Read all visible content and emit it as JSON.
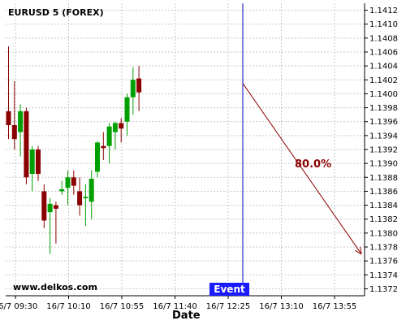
{
  "chart_data": {
    "type": "candlestick",
    "title": "EURUSD 5 (FOREX)",
    "xlabel": "Date",
    "ylabel": "",
    "ylim": [
      1.1371,
      1.1413
    ],
    "y_ticks": [
      "1.1412",
      "1.1410",
      "1.1408",
      "1.1406",
      "1.1404",
      "1.1402",
      "1.1400",
      "1.1398",
      "1.1396",
      "1.1394",
      "1.1392",
      "1.1390",
      "1.1388",
      "1.1386",
      "1.1384",
      "1.1382",
      "1.1380",
      "1.1378",
      "1.1376",
      "1.1374",
      "1.1372"
    ],
    "x_ticks": [
      "16/7 09:30",
      "16/7 10:10",
      "16/7 10:55",
      "16/7 11:40",
      "16/7 12:25",
      "16/7 13:10",
      "16/7 13:55"
    ],
    "grid": true,
    "candles": [
      {
        "open": 1.13975,
        "high": 1.14068,
        "low": 1.13935,
        "close": 1.13955
      },
      {
        "open": 1.13955,
        "high": 1.14018,
        "low": 1.1392,
        "close": 1.13935
      },
      {
        "open": 1.13945,
        "high": 1.13985,
        "low": 1.1391,
        "close": 1.13975
      },
      {
        "open": 1.13975,
        "high": 1.1398,
        "low": 1.1387,
        "close": 1.1388
      },
      {
        "open": 1.13885,
        "high": 1.13925,
        "low": 1.1386,
        "close": 1.1392
      },
      {
        "open": 1.1392,
        "high": 1.13925,
        "low": 1.13875,
        "close": 1.13885
      },
      {
        "open": 1.1386,
        "high": 1.1387,
        "low": 1.13807,
        "close": 1.13818
      },
      {
        "open": 1.1383,
        "high": 1.1385,
        "low": 1.1377,
        "close": 1.13842
      },
      {
        "open": 1.1384,
        "high": 1.13845,
        "low": 1.13785,
        "close": 1.13835
      },
      {
        "open": 1.1386,
        "high": 1.13875,
        "low": 1.13855,
        "close": 1.13863
      },
      {
        "open": 1.13865,
        "high": 1.1389,
        "low": 1.1384,
        "close": 1.1388
      },
      {
        "open": 1.1388,
        "high": 1.1389,
        "low": 1.13855,
        "close": 1.13868
      },
      {
        "open": 1.1386,
        "high": 1.1388,
        "low": 1.13825,
        "close": 1.1384
      },
      {
        "open": 1.1385,
        "high": 1.1387,
        "low": 1.1381,
        "close": 1.13852
      },
      {
        "open": 1.13845,
        "high": 1.1389,
        "low": 1.1382,
        "close": 1.13878
      },
      {
        "open": 1.13888,
        "high": 1.13932,
        "low": 1.1388,
        "close": 1.1393
      },
      {
        "open": 1.13925,
        "high": 1.13945,
        "low": 1.13905,
        "close": 1.13922
      },
      {
        "open": 1.13925,
        "high": 1.13958,
        "low": 1.139,
        "close": 1.13953
      },
      {
        "open": 1.13945,
        "high": 1.1396,
        "low": 1.1392,
        "close": 1.13958
      },
      {
        "open": 1.13958,
        "high": 1.13965,
        "low": 1.1393,
        "close": 1.1395
      },
      {
        "open": 1.1396,
        "high": 1.14,
        "low": 1.1394,
        "close": 1.13995
      },
      {
        "open": 1.13995,
        "high": 1.14038,
        "low": 1.1397,
        "close": 1.1402
      },
      {
        "open": 1.14022,
        "high": 1.1404,
        "low": 1.13975,
        "close": 1.14002
      }
    ],
    "event": {
      "x_tick_index": 4,
      "label": "Event"
    },
    "forecast": {
      "label": "80.0%",
      "start_value": 1.14015,
      "end_value": 1.1377,
      "color": "#8b0000"
    },
    "up_color": "#00a000",
    "down_color": "#8b0000",
    "event_color": "#0000cc"
  },
  "watermark": "www.delkos.com"
}
